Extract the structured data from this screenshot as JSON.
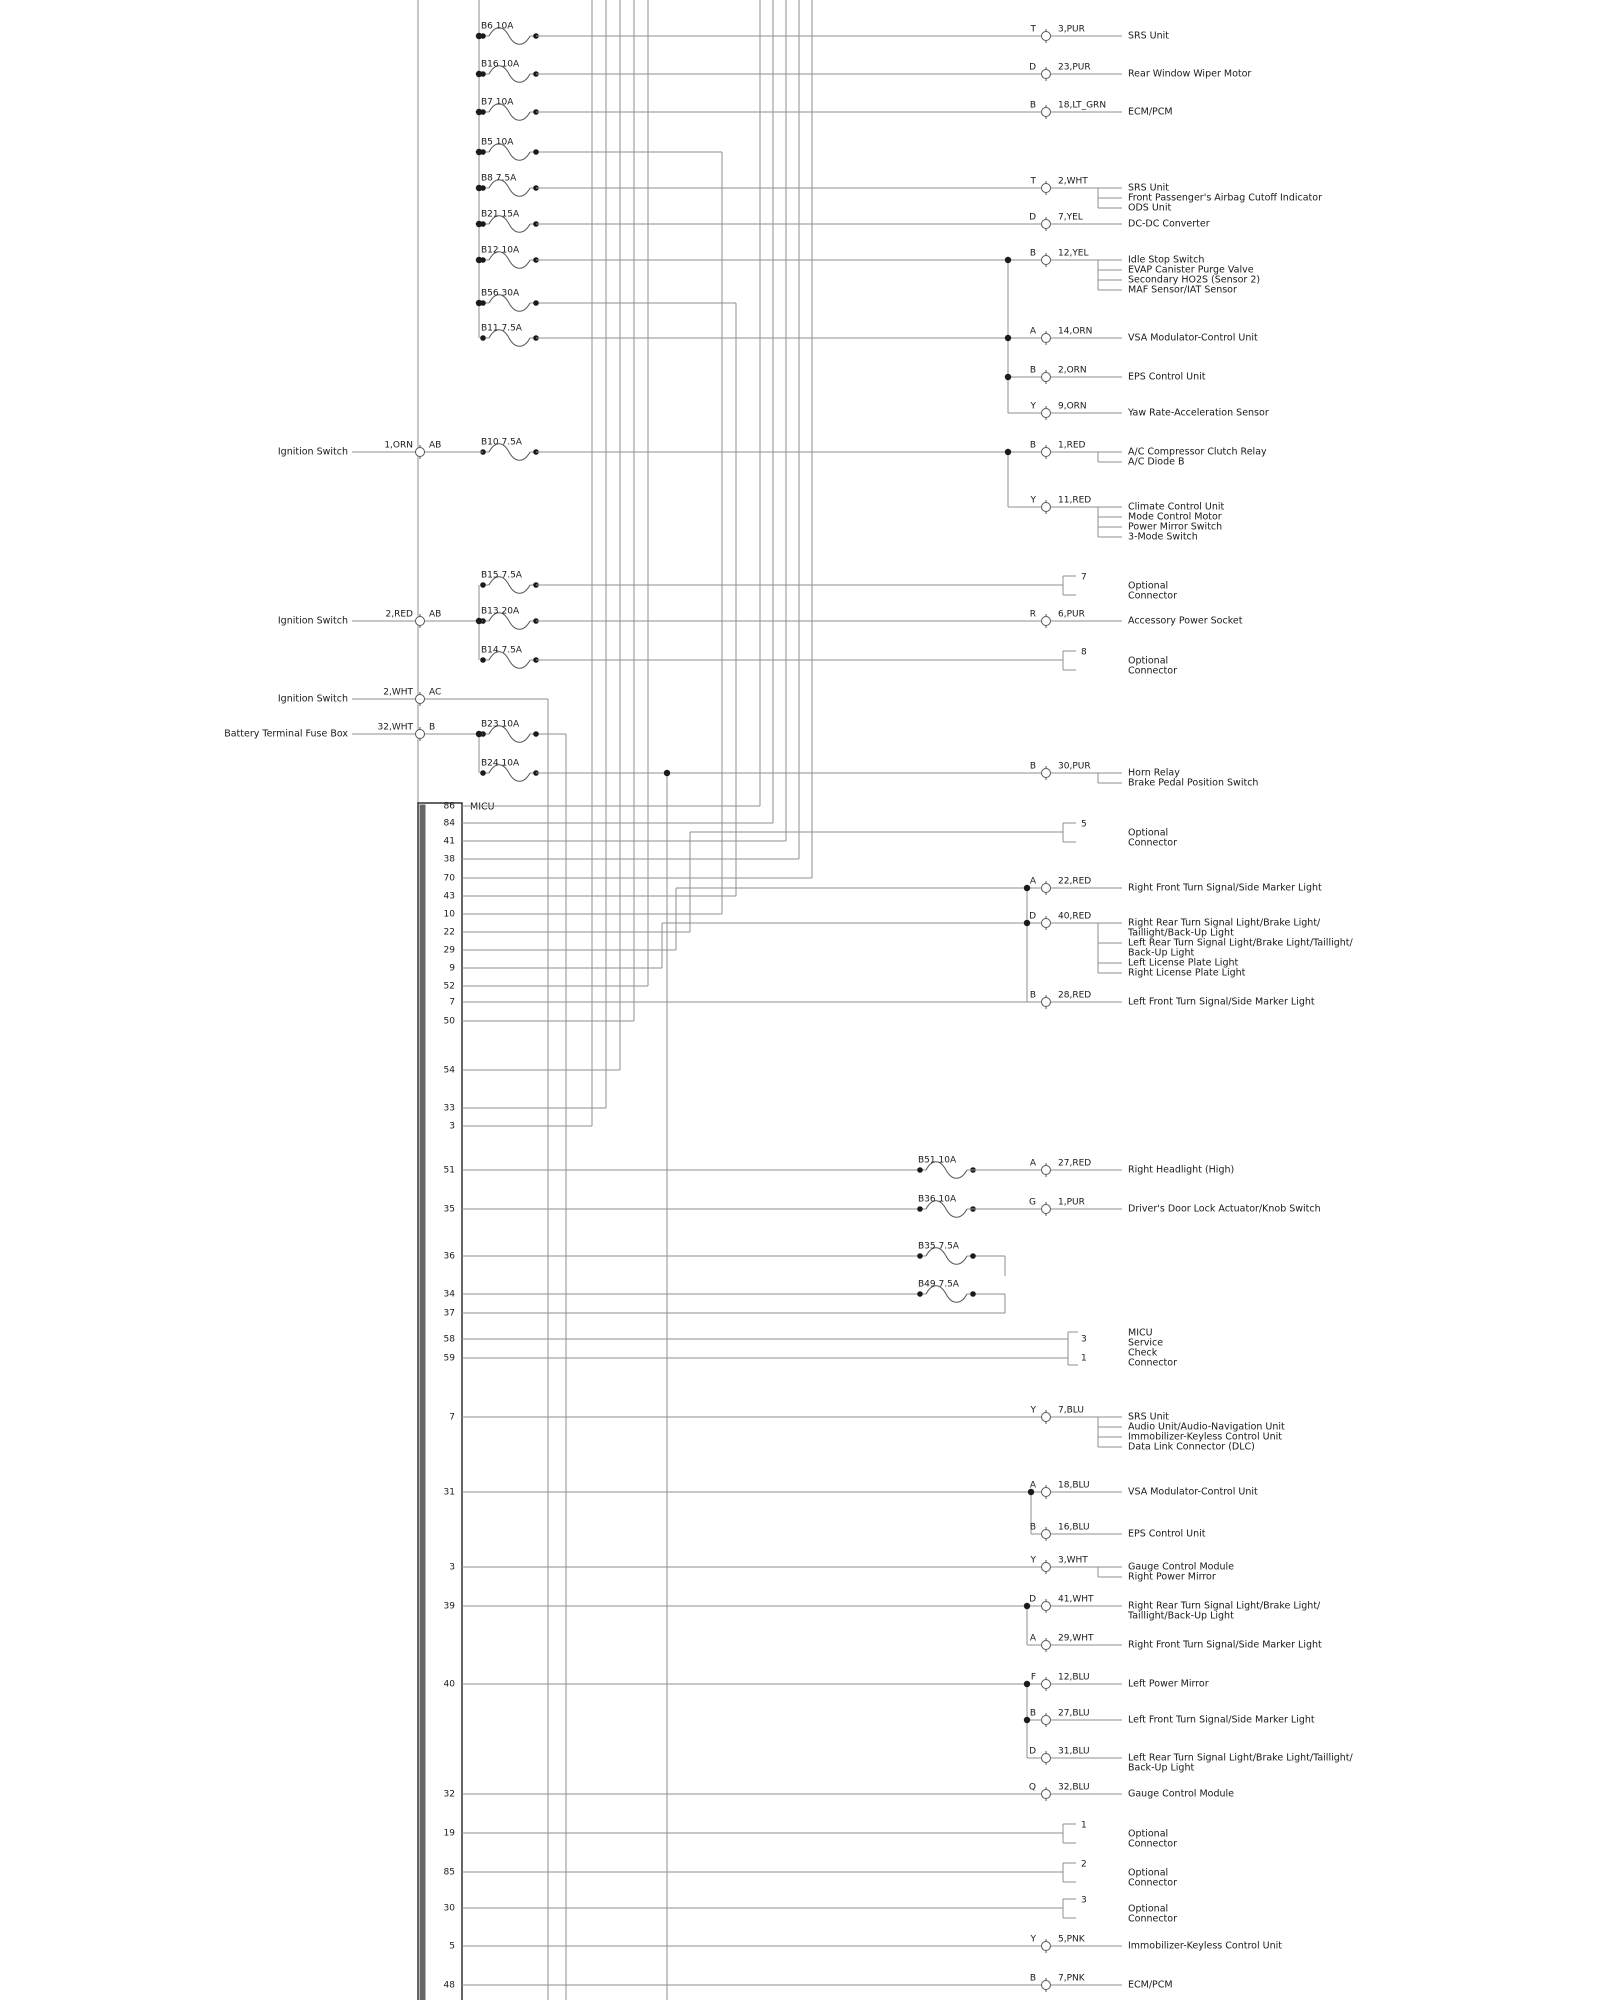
{
  "diagram": {
    "micu": {
      "label": "MICU",
      "pins": [
        "86",
        "84",
        "41",
        "38",
        "70",
        "43",
        "10",
        "22",
        "29",
        "9",
        "52",
        "7",
        "50",
        "54",
        "33",
        "3",
        "51",
        "35",
        "36",
        "34",
        "37",
        "58",
        "59",
        "7",
        "31",
        "3",
        "39",
        "40",
        "32",
        "19",
        "85",
        "30",
        "5",
        "48"
      ]
    },
    "left_inputs": [
      {
        "label": "Ignition Switch",
        "wire": "1,ORN",
        "conn": "AB"
      },
      {
        "label": "Ignition Switch",
        "wire": "2,RED",
        "conn": "AB"
      },
      {
        "label": "Ignition Switch",
        "wire": "2,WHT",
        "conn": "AC"
      },
      {
        "label": "Battery Terminal Fuse Box",
        "wire": "32,WHT",
        "conn": "B"
      }
    ],
    "fuses": [
      "B6 10A",
      "B16 10A",
      "B7 10A",
      "B5 10A",
      "B8 7.5A",
      "B21 15A",
      "B12 10A",
      "B56 30A",
      "B11 7.5A",
      "B10 7.5A",
      "B15 7.5A",
      "B13 20A",
      "B14 7.5A",
      "B23 10A",
      "B24 10A",
      "B51 10A",
      "B36 10A",
      "B35 7.5A",
      "B49 7.5A"
    ],
    "rows": [
      {
        "type": "pin",
        "pin": "T",
        "wire": "3,PUR",
        "targets": [
          [
            "SRS Unit"
          ]
        ]
      },
      {
        "type": "pin",
        "pin": "D",
        "wire": "23,PUR",
        "targets": [
          [
            "Rear Window Wiper Motor"
          ]
        ]
      },
      {
        "type": "pin",
        "pin": "B",
        "wire": "18,LT_GRN",
        "targets": [
          [
            "ECM/PCM"
          ]
        ]
      },
      {
        "type": "pin",
        "pin": "T",
        "wire": "2,WHT",
        "targets": [
          [
            "SRS Unit"
          ],
          [
            "Front Passenger's Airbag Cutoff Indicator"
          ],
          [
            "ODS Unit"
          ]
        ]
      },
      {
        "type": "pin",
        "pin": "D",
        "wire": "7,YEL",
        "targets": [
          [
            "DC-DC Converter"
          ]
        ]
      },
      {
        "type": "pin",
        "pin": "B",
        "wire": "12,YEL",
        "targets": [
          [
            "Idle Stop Switch"
          ],
          [
            "EVAP Canister Purge Valve"
          ],
          [
            "Secondary HO2S (Sensor 2)"
          ],
          [
            "MAF Sensor/IAT Sensor"
          ]
        ]
      },
      {
        "type": "pin",
        "pin": "A",
        "wire": "14,ORN",
        "targets": [
          [
            "VSA Modulator-Control Unit"
          ]
        ]
      },
      {
        "type": "pin",
        "pin": "B",
        "wire": "2,ORN",
        "targets": [
          [
            "EPS Control Unit"
          ]
        ]
      },
      {
        "type": "pin",
        "pin": "Y",
        "wire": "9,ORN",
        "targets": [
          [
            "Yaw Rate-Acceleration Sensor"
          ]
        ]
      },
      {
        "type": "pin",
        "pin": "B",
        "wire": "1,RED",
        "targets": [
          [
            "A/C Compressor Clutch Relay"
          ],
          [
            "A/C Diode B"
          ]
        ]
      },
      {
        "type": "pin",
        "pin": "Y",
        "wire": "11,RED",
        "targets": [
          [
            "Climate Control Unit"
          ],
          [
            "Mode Control Motor"
          ],
          [
            "Power Mirror Switch"
          ],
          [
            "3-Mode Switch"
          ]
        ]
      },
      {
        "type": "optional",
        "num": "7",
        "targets": [
          [
            "Optional",
            "Connector"
          ]
        ]
      },
      {
        "type": "pin",
        "pin": "R",
        "wire": "6,PUR",
        "targets": [
          [
            "Accessory Power Socket"
          ]
        ]
      },
      {
        "type": "optional",
        "num": "8",
        "targets": [
          [
            "Optional",
            "Connector"
          ]
        ]
      },
      {
        "type": "pin",
        "pin": "B",
        "wire": "30,PUR",
        "targets": [
          [
            "Horn Relay"
          ],
          [
            "Brake Pedal Position Switch"
          ]
        ]
      },
      {
        "type": "optional",
        "num": "5",
        "targets": [
          [
            "Optional",
            "Connector"
          ]
        ]
      },
      {
        "type": "pin",
        "pin": "A",
        "wire": "22,RED",
        "targets": [
          [
            "Right Front Turn Signal/Side Marker Light"
          ]
        ]
      },
      {
        "type": "pin",
        "pin": "D",
        "wire": "40,RED",
        "targets": [
          [
            "Right Rear Turn Signal Light/Brake Light/",
            "Taillight/Back-Up Light"
          ],
          [
            "Left Rear Turn Signal Light/Brake Light/Taillight/",
            "Back-Up Light"
          ],
          [
            "Left License Plate Light"
          ],
          [
            "Right License Plate Light"
          ]
        ]
      },
      {
        "type": "pin",
        "pin": "B",
        "wire": "28,RED",
        "targets": [
          [
            "Left Front Turn Signal/Side Marker Light"
          ]
        ]
      },
      {
        "type": "pin",
        "pin": "A",
        "wire": "27,RED",
        "targets": [
          [
            "Right Headlight (High)"
          ]
        ]
      },
      {
        "type": "pin",
        "pin": "G",
        "wire": "1,PUR",
        "targets": [
          [
            "Driver's Door Lock Actuator/Knob Switch"
          ]
        ]
      },
      {
        "type": "service",
        "pins": [
          "3",
          "1"
        ],
        "targets": [
          [
            "MICU",
            "Service",
            "Check",
            "Connector"
          ]
        ]
      },
      {
        "type": "pin",
        "pin": "Y",
        "wire": "7,BLU",
        "targets": [
          [
            "SRS Unit"
          ],
          [
            "Audio Unit/Audio-Navigation Unit"
          ],
          [
            "Immobilizer-Keyless Control Unit"
          ],
          [
            "Data Link Connector (DLC)"
          ]
        ]
      },
      {
        "type": "pin",
        "pin": "A",
        "wire": "18,BLU",
        "targets": [
          [
            "VSA Modulator-Control Unit"
          ]
        ]
      },
      {
        "type": "pin",
        "pin": "B",
        "wire": "16,BLU",
        "targets": [
          [
            "EPS Control Unit"
          ]
        ]
      },
      {
        "type": "pin",
        "pin": "Y",
        "wire": "3,WHT",
        "targets": [
          [
            "Gauge Control Module"
          ],
          [
            "Right Power Mirror"
          ]
        ]
      },
      {
        "type": "pin",
        "pin": "D",
        "wire": "41,WHT",
        "targets": [
          [
            "Right Rear Turn Signal Light/Brake Light/",
            "Taillight/Back-Up Light"
          ]
        ]
      },
      {
        "type": "pin",
        "pin": "A",
        "wire": "29,WHT",
        "targets": [
          [
            "Right Front Turn Signal/Side Marker Light"
          ]
        ]
      },
      {
        "type": "pin",
        "pin": "F",
        "wire": "12,BLU",
        "targets": [
          [
            "Left Power Mirror"
          ]
        ]
      },
      {
        "type": "pin",
        "pin": "B",
        "wire": "27,BLU",
        "targets": [
          [
            "Left Front Turn Signal/Side Marker Light"
          ]
        ]
      },
      {
        "type": "pin",
        "pin": "D",
        "wire": "31,BLU",
        "targets": [
          [
            "Left Rear Turn Signal Light/Brake Light/Taillight/",
            "Back-Up Light"
          ]
        ]
      },
      {
        "type": "pin",
        "pin": "Q",
        "wire": "32,BLU",
        "targets": [
          [
            "Gauge Control Module"
          ]
        ]
      },
      {
        "type": "optional",
        "num": "1",
        "targets": [
          [
            "Optional",
            "Connector"
          ]
        ]
      },
      {
        "type": "optional",
        "num": "2",
        "targets": [
          [
            "Optional",
            "Connector"
          ]
        ]
      },
      {
        "type": "optional",
        "num": "3",
        "targets": [
          [
            "Optional",
            "Connector"
          ]
        ]
      },
      {
        "type": "pin",
        "pin": "Y",
        "wire": "5,PNK",
        "targets": [
          [
            "Immobilizer-Keyless Control Unit"
          ]
        ]
      },
      {
        "type": "pin",
        "pin": "B",
        "wire": "7,PNK",
        "targets": [
          [
            "ECM/PCM"
          ]
        ]
      }
    ],
    "colors": {
      "wire": "#8f8f8f",
      "symbol": "#555555",
      "text": "#1a1a1a",
      "dot": "#1b1b1b",
      "box_edge": "#222222",
      "box_bar": "#666666"
    }
  }
}
